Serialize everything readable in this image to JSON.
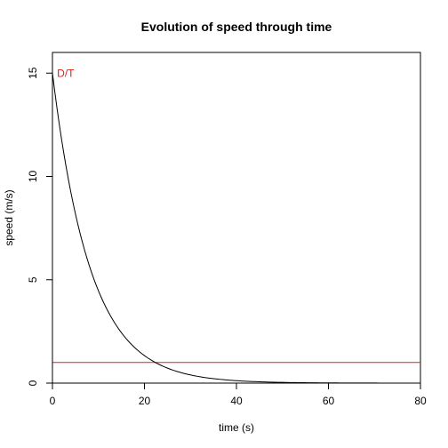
{
  "chart_data": {
    "type": "line",
    "title": "Evolution of speed through time",
    "xlabel": "time (s)",
    "ylabel": "speed (m/s)",
    "xlim": [
      0,
      80
    ],
    "ylim": [
      0,
      16
    ],
    "x_ticks": [
      0,
      20,
      40,
      60,
      80
    ],
    "y_ticks": [
      0,
      5,
      10,
      15
    ],
    "x_tick_labels": [
      "0",
      "20",
      "40",
      "60",
      "80"
    ],
    "y_tick_labels": [
      "0",
      "5",
      "10",
      "15"
    ],
    "grid": false,
    "legend": "none",
    "series": [
      {
        "color": "#000000",
        "x": [
          0,
          2,
          4,
          6,
          8,
          10,
          12,
          14,
          16,
          18,
          20,
          22,
          24,
          26,
          28,
          30,
          32,
          34,
          36,
          38,
          40,
          42,
          44,
          46,
          48,
          50,
          52,
          54,
          56,
          58,
          60,
          62,
          64,
          66,
          68,
          70,
          72,
          74,
          76,
          78,
          80
        ],
        "y": [
          15.0,
          11.77,
          9.25,
          7.26,
          5.7,
          4.47,
          3.51,
          2.76,
          2.17,
          1.7,
          1.33,
          1.05,
          0.82,
          0.65,
          0.51,
          0.4,
          0.31,
          0.24,
          0.19,
          0.15,
          0.12,
          0.09,
          0.07,
          0.06,
          0.05,
          0.04,
          0.03,
          0.02,
          0.02,
          0.01,
          0.01,
          0.01,
          0.01,
          0.01,
          0.0,
          0.0,
          0.0,
          0.0,
          0.0,
          0.0,
          0.0
        ]
      }
    ],
    "reference_lines": [
      {
        "type": "horizontal",
        "y": 1,
        "color": "#e0201b"
      }
    ],
    "annotations": [
      {
        "text": "D/T",
        "x": 1,
        "y": 15,
        "color": "#e0201b"
      }
    ]
  }
}
